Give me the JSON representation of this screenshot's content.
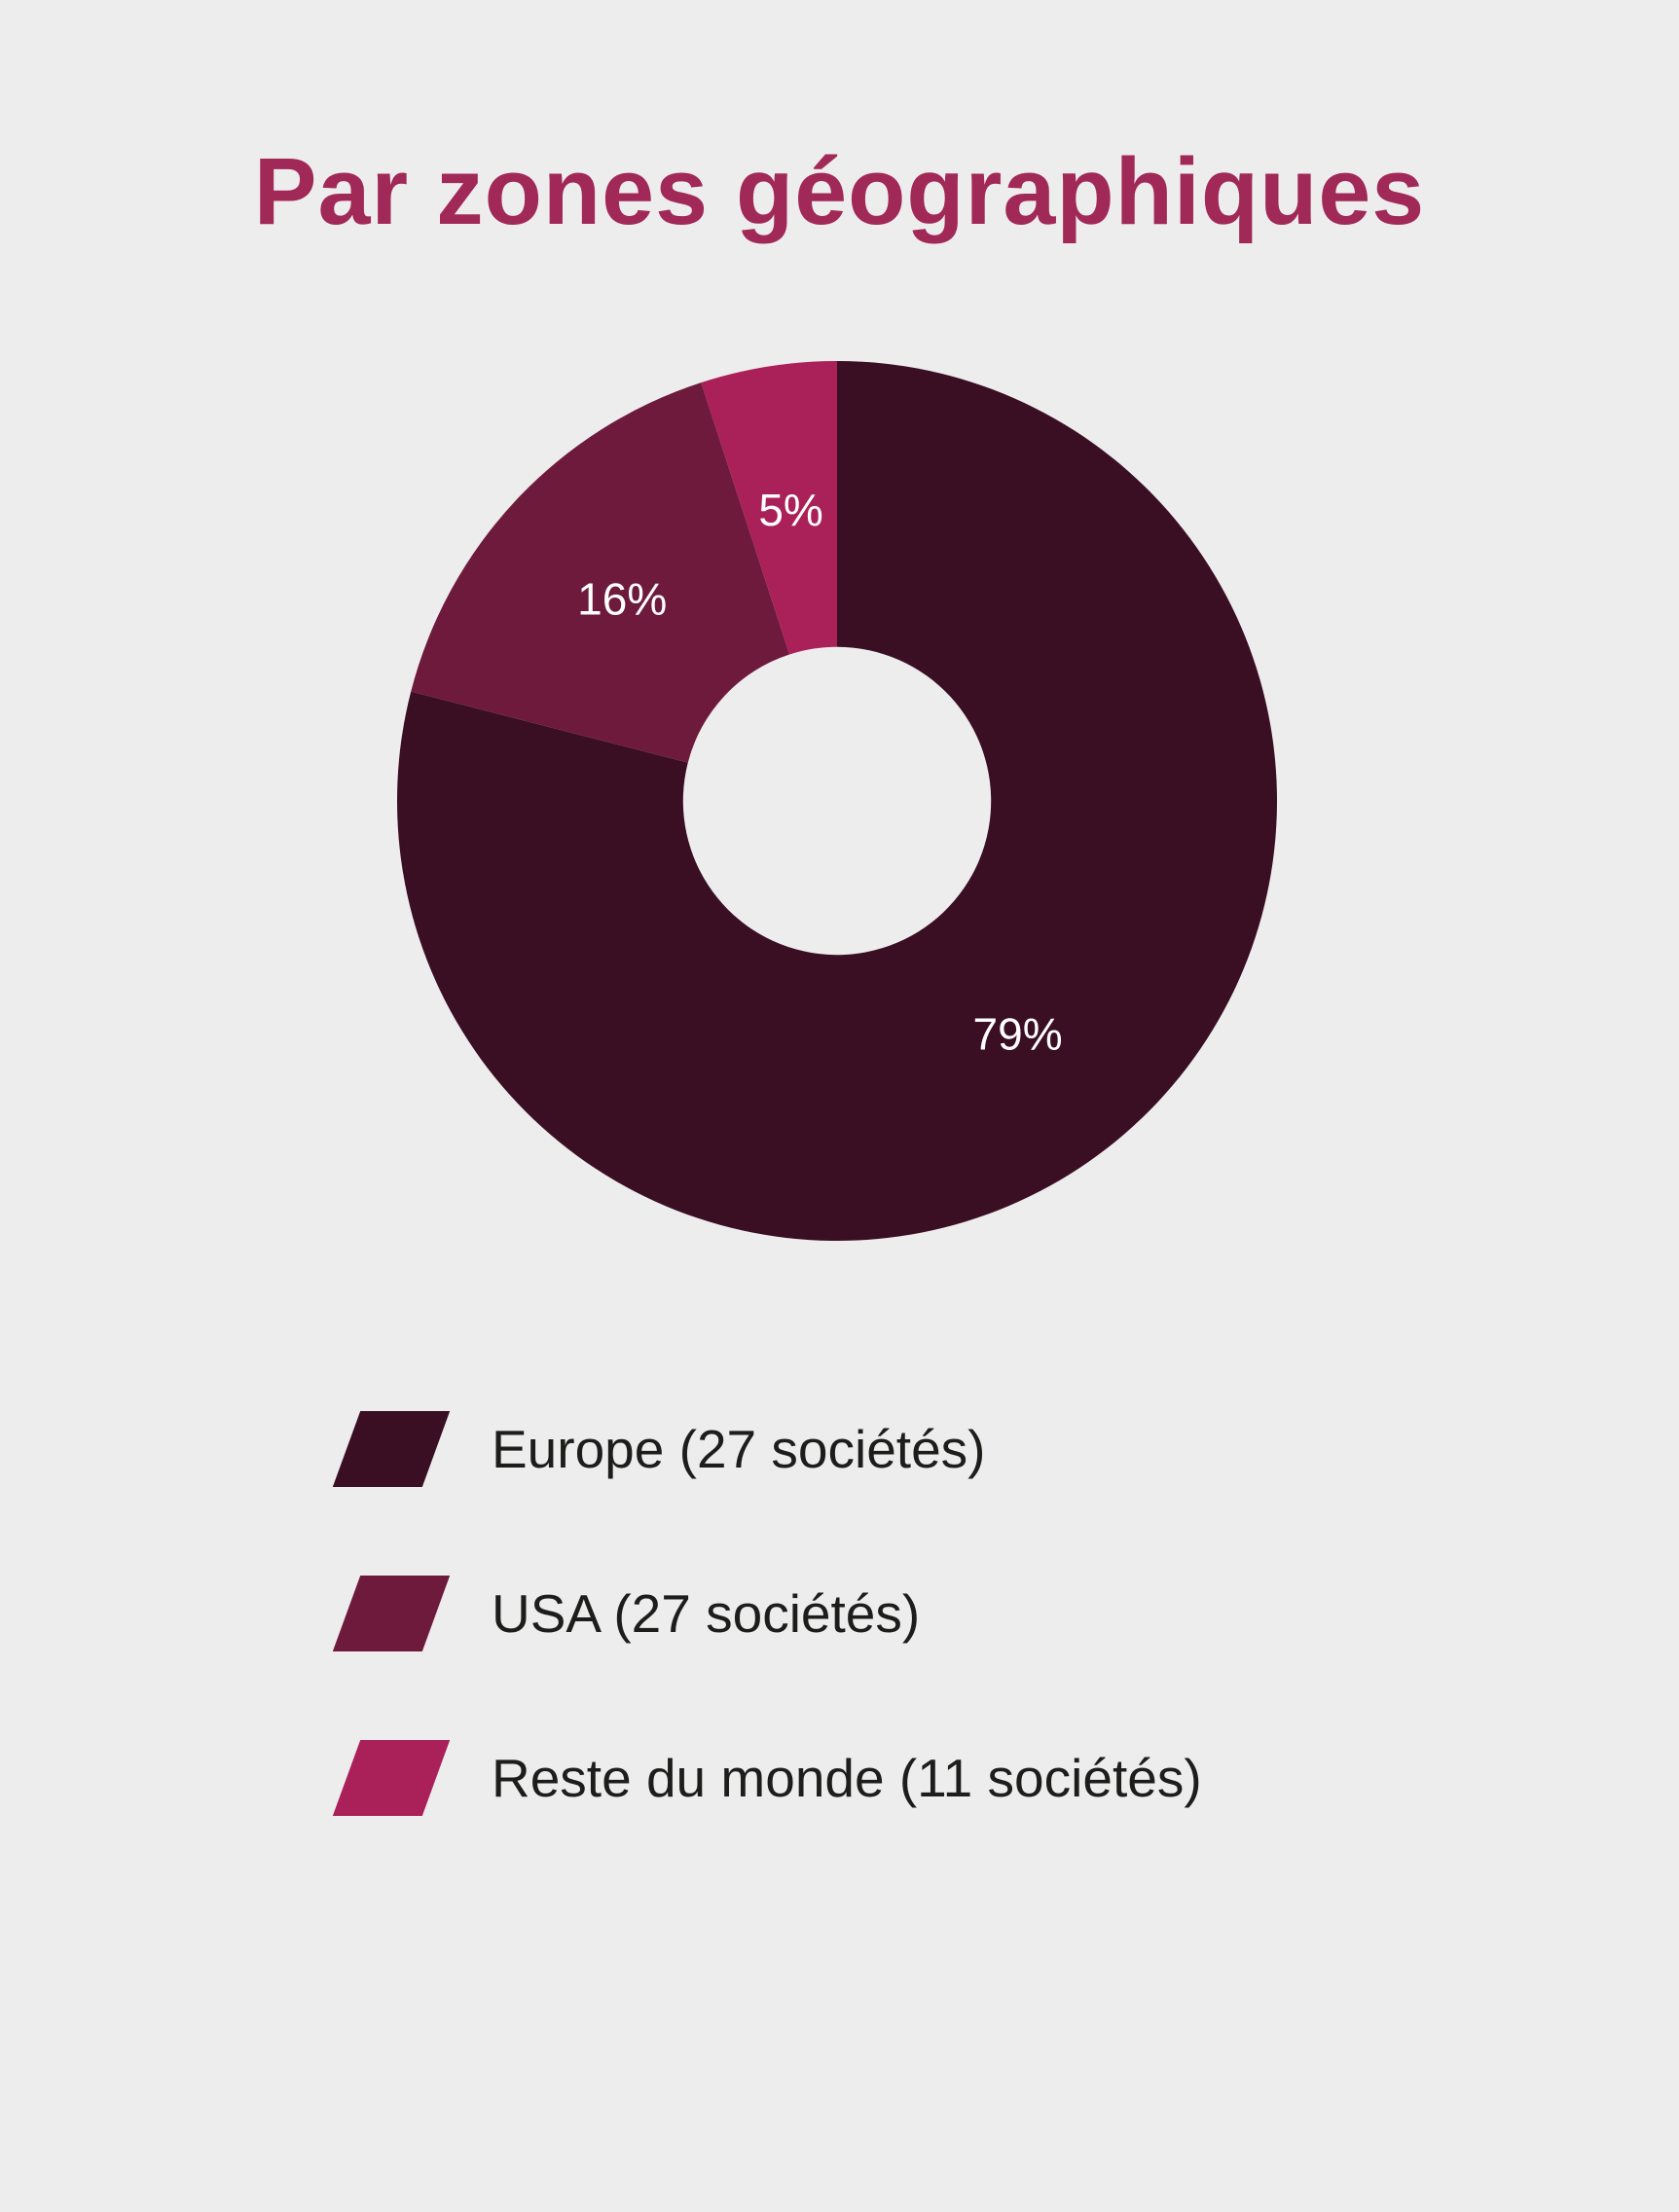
{
  "page": {
    "background_color": "#eeedee"
  },
  "title": {
    "text": "Par zones géographiques",
    "color": "#a12958"
  },
  "chart_data": {
    "type": "pie",
    "subtype": "donut",
    "title": "Par zones géographiques",
    "unit": "%",
    "start_angle_deg": -90,
    "direction": "clockwise",
    "inner_radius_ratio": 0.35,
    "value_label_color": "#ffffff",
    "legend_position": "bottom-left",
    "slices": [
      {
        "label": "Europe (27 sociétés)",
        "value": 79,
        "display": "79%",
        "color": "#3a0e23"
      },
      {
        "label": "USA (27 sociétés)",
        "value": 16,
        "display": "16%",
        "color": "#6e1a3c"
      },
      {
        "label": "Reste du monde (11 sociétés)",
        "value": 5,
        "display": "5%",
        "color": "#a92158"
      }
    ]
  }
}
